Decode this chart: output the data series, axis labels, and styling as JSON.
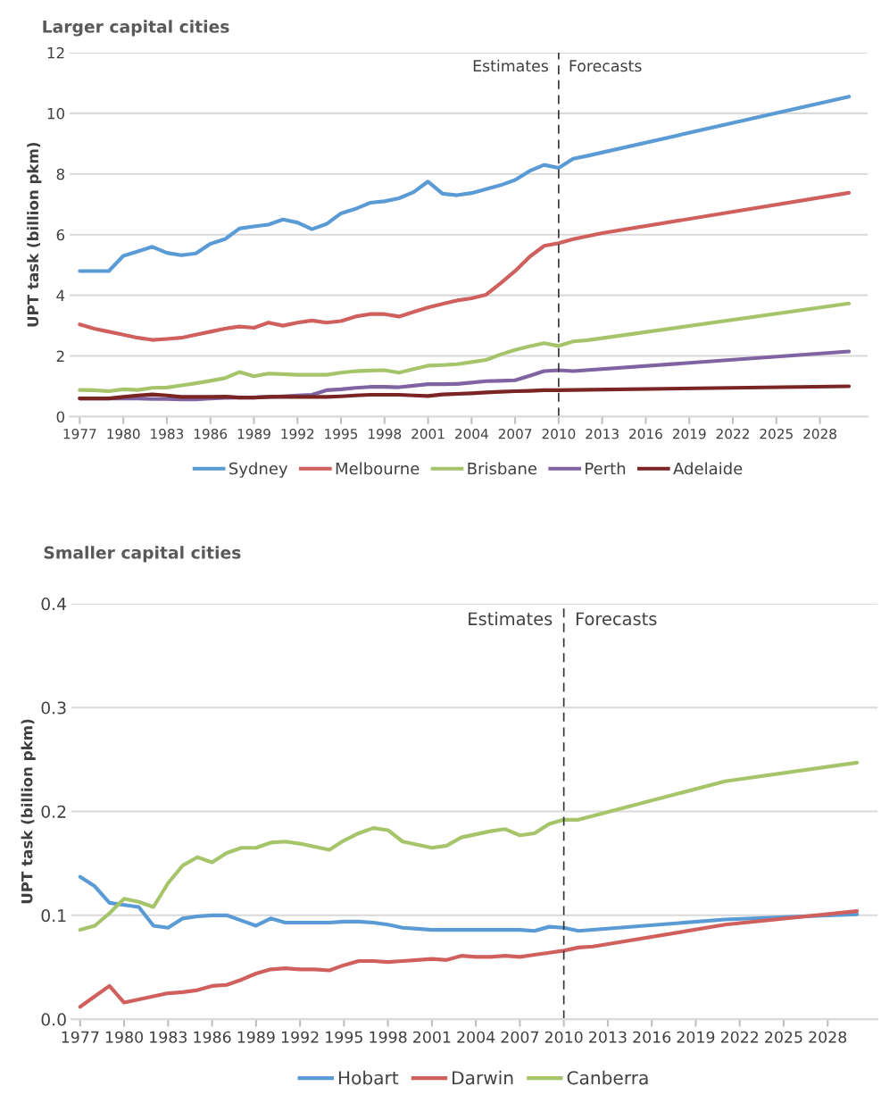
{
  "chart_data": [
    {
      "type": "line",
      "title": "Larger capital cities",
      "ylabel": "UPT task (billion pkm)",
      "xlim": [
        1976.3,
        2031.3
      ],
      "ylim": [
        0,
        12
      ],
      "xticks": [
        1977,
        1980,
        1983,
        1986,
        1989,
        1992,
        1995,
        1998,
        2001,
        2004,
        2007,
        2010,
        2013,
        2016,
        2019,
        2022,
        2025,
        2028
      ],
      "yticks": [
        0,
        2,
        4,
        6,
        8,
        10,
        12
      ],
      "grid": "y",
      "legend": "bottom",
      "marker": "none",
      "line_style": "solid",
      "ref_lines": [
        {
          "axis": "x",
          "value": 2010,
          "label": null,
          "color": "#333333",
          "line_style": "dashed"
        }
      ],
      "annotations": [
        "Estimates",
        "Forecasts"
      ],
      "series": [
        {
          "name": "Sydney",
          "color": "#5b9bd5",
          "x": [
            1977,
            1978,
            1979,
            1980,
            1981,
            1982,
            1983,
            1984,
            1985,
            1986,
            1987,
            1988,
            1989,
            1990,
            1991,
            1992,
            1993,
            1994,
            1995,
            1996,
            1997,
            1998,
            1999,
            2000,
            2001,
            2002,
            2003,
            2004,
            2005,
            2006,
            2007,
            2008,
            2009,
            2010,
            2011,
            2012,
            2030
          ],
          "values": [
            4.8,
            4.8,
            4.8,
            5.3,
            5.45,
            5.6,
            5.4,
            5.32,
            5.38,
            5.7,
            5.85,
            6.2,
            6.27,
            6.33,
            6.5,
            6.4,
            6.18,
            6.35,
            6.7,
            6.85,
            7.05,
            7.1,
            7.2,
            7.4,
            7.75,
            7.35,
            7.3,
            7.37,
            7.5,
            7.63,
            7.8,
            8.1,
            8.3,
            8.2,
            8.5,
            8.6,
            10.55
          ]
        },
        {
          "name": "Melbourne",
          "color": "#d0605e",
          "x": [
            1977,
            1978,
            1979,
            1980,
            1981,
            1982,
            1983,
            1984,
            1985,
            1986,
            1987,
            1988,
            1989,
            1990,
            1991,
            1992,
            1993,
            1994,
            1995,
            1996,
            1997,
            1998,
            1999,
            2000,
            2001,
            2002,
            2003,
            2004,
            2005,
            2006,
            2007,
            2008,
            2009,
            2010,
            2011,
            2013,
            2030
          ],
          "values": [
            3.04,
            2.9,
            2.8,
            2.7,
            2.6,
            2.53,
            2.56,
            2.6,
            2.7,
            2.8,
            2.9,
            2.97,
            2.93,
            3.1,
            3.0,
            3.1,
            3.17,
            3.1,
            3.15,
            3.3,
            3.38,
            3.38,
            3.3,
            3.45,
            3.6,
            3.72,
            3.83,
            3.9,
            4.02,
            4.4,
            4.8,
            5.27,
            5.63,
            5.72,
            5.85,
            6.05,
            7.38
          ]
        },
        {
          "name": "Brisbane",
          "color": "#a6c46a",
          "x": [
            1977,
            1978,
            1979,
            1980,
            1981,
            1982,
            1983,
            1984,
            1985,
            1986,
            1987,
            1988,
            1989,
            1990,
            1991,
            1992,
            1993,
            1994,
            1995,
            1996,
            1997,
            1998,
            1999,
            2000,
            2001,
            2002,
            2003,
            2004,
            2005,
            2006,
            2007,
            2008,
            2009,
            2010,
            2011,
            2012,
            2030
          ],
          "values": [
            0.88,
            0.87,
            0.84,
            0.9,
            0.88,
            0.95,
            0.96,
            1.03,
            1.1,
            1.18,
            1.27,
            1.47,
            1.33,
            1.42,
            1.4,
            1.38,
            1.38,
            1.38,
            1.45,
            1.5,
            1.52,
            1.53,
            1.45,
            1.57,
            1.68,
            1.7,
            1.73,
            1.8,
            1.87,
            2.05,
            2.2,
            2.32,
            2.42,
            2.33,
            2.48,
            2.52,
            3.73
          ]
        },
        {
          "name": "Perth",
          "color": "#8064a2",
          "x": [
            1977,
            1978,
            1979,
            1980,
            1981,
            1982,
            1983,
            1984,
            1985,
            1986,
            1987,
            1988,
            1989,
            1990,
            1991,
            1992,
            1993,
            1994,
            1995,
            1996,
            1997,
            1998,
            1999,
            2000,
            2001,
            2002,
            2003,
            2004,
            2005,
            2006,
            2007,
            2008,
            2009,
            2010,
            2011,
            2030
          ],
          "values": [
            0.6,
            0.6,
            0.6,
            0.6,
            0.6,
            0.58,
            0.58,
            0.57,
            0.57,
            0.6,
            0.62,
            0.63,
            0.63,
            0.65,
            0.67,
            0.7,
            0.72,
            0.87,
            0.9,
            0.95,
            0.98,
            0.98,
            0.97,
            1.02,
            1.07,
            1.07,
            1.08,
            1.12,
            1.17,
            1.18,
            1.2,
            1.35,
            1.5,
            1.53,
            1.5,
            2.15
          ]
        },
        {
          "name": "Adelaide",
          "color": "#7b2424",
          "x": [
            1977,
            1978,
            1979,
            1980,
            1981,
            1982,
            1983,
            1984,
            1985,
            1986,
            1987,
            1988,
            1989,
            1990,
            1991,
            1992,
            1993,
            1994,
            1995,
            1996,
            1997,
            1998,
            1999,
            2000,
            2001,
            2002,
            2003,
            2004,
            2005,
            2006,
            2007,
            2008,
            2009,
            2010,
            2011,
            2030
          ],
          "values": [
            0.6,
            0.6,
            0.6,
            0.65,
            0.7,
            0.73,
            0.7,
            0.65,
            0.65,
            0.65,
            0.66,
            0.63,
            0.63,
            0.65,
            0.66,
            0.65,
            0.65,
            0.65,
            0.67,
            0.7,
            0.72,
            0.72,
            0.72,
            0.7,
            0.68,
            0.73,
            0.75,
            0.77,
            0.8,
            0.82,
            0.84,
            0.85,
            0.87,
            0.87,
            0.88,
            1.0
          ]
        }
      ]
    },
    {
      "type": "line",
      "title": "Smaller capital cities",
      "ylabel": "UPT task (billion pkm)",
      "xlim": [
        1976.4,
        2031.4
      ],
      "ylim": [
        0,
        0.4
      ],
      "xticks": [
        1977,
        1980,
        1983,
        1986,
        1989,
        1992,
        1995,
        1998,
        2001,
        2004,
        2007,
        2010,
        2013,
        2016,
        2019,
        2022,
        2025,
        2028
      ],
      "yticks": [
        {
          "value": 0,
          "label": "0.0"
        },
        {
          "value": 0.1,
          "label": "0.1"
        },
        {
          "value": 0.2,
          "label": "0.2"
        },
        {
          "value": 0.3,
          "label": "0.3"
        },
        {
          "value": 0.4,
          "label": "0.4"
        }
      ],
      "grid": "y",
      "legend": "bottom",
      "marker": "none",
      "line_style": "solid",
      "ref_lines": [
        {
          "axis": "x",
          "value": 2010,
          "label": null,
          "color": "#333333",
          "line_style": "dashed"
        }
      ],
      "annotations": [
        "Estimates",
        "Forecasts"
      ],
      "series": [
        {
          "name": "Hobart",
          "color": "#5b9bd5",
          "x": [
            1977,
            1978,
            1979,
            1980,
            1981,
            1982,
            1983,
            1984,
            1985,
            1986,
            1987,
            1988,
            1989,
            1990,
            1991,
            1992,
            1993,
            1994,
            1995,
            1996,
            1997,
            1998,
            1999,
            2000,
            2001,
            2002,
            2003,
            2004,
            2005,
            2006,
            2007,
            2008,
            2009,
            2010,
            2011,
            2021,
            2030
          ],
          "values": [
            0.137,
            0.128,
            0.112,
            0.11,
            0.108,
            0.09,
            0.088,
            0.097,
            0.099,
            0.1,
            0.1,
            0.095,
            0.09,
            0.097,
            0.093,
            0.093,
            0.093,
            0.093,
            0.094,
            0.094,
            0.093,
            0.091,
            0.088,
            0.087,
            0.086,
            0.086,
            0.086,
            0.086,
            0.086,
            0.086,
            0.086,
            0.085,
            0.089,
            0.088,
            0.085,
            0.096,
            0.101
          ]
        },
        {
          "name": "Darwin",
          "color": "#d0605e",
          "x": [
            1977,
            1978,
            1979,
            1980,
            1981,
            1982,
            1983,
            1984,
            1985,
            1986,
            1987,
            1988,
            1989,
            1990,
            1991,
            1992,
            1993,
            1994,
            1995,
            1996,
            1997,
            1998,
            1999,
            2000,
            2001,
            2002,
            2003,
            2004,
            2005,
            2006,
            2007,
            2008,
            2009,
            2010,
            2011,
            2012,
            2021,
            2030
          ],
          "values": [
            0.012,
            0.022,
            0.032,
            0.016,
            0.019,
            0.022,
            0.025,
            0.026,
            0.028,
            0.032,
            0.033,
            0.038,
            0.044,
            0.048,
            0.049,
            0.048,
            0.048,
            0.047,
            0.052,
            0.056,
            0.056,
            0.055,
            0.056,
            0.057,
            0.058,
            0.057,
            0.061,
            0.06,
            0.06,
            0.061,
            0.06,
            0.062,
            0.064,
            0.066,
            0.069,
            0.07,
            0.091,
            0.104
          ]
        },
        {
          "name": "Canberra",
          "color": "#a6c46a",
          "x": [
            1977,
            1978,
            1979,
            1980,
            1981,
            1982,
            1983,
            1984,
            1985,
            1986,
            1987,
            1988,
            1989,
            1990,
            1991,
            1992,
            1993,
            1994,
            1995,
            1996,
            1997,
            1998,
            1999,
            2000,
            2001,
            2002,
            2003,
            2004,
            2005,
            2006,
            2007,
            2008,
            2009,
            2010,
            2011,
            2021,
            2030
          ],
          "values": [
            0.086,
            0.09,
            0.102,
            0.116,
            0.113,
            0.108,
            0.131,
            0.148,
            0.156,
            0.151,
            0.16,
            0.165,
            0.165,
            0.17,
            0.171,
            0.169,
            0.166,
            0.163,
            0.172,
            0.179,
            0.184,
            0.182,
            0.171,
            0.168,
            0.165,
            0.167,
            0.175,
            0.178,
            0.181,
            0.183,
            0.177,
            0.179,
            0.188,
            0.192,
            0.192,
            0.229,
            0.247
          ]
        }
      ]
    }
  ]
}
